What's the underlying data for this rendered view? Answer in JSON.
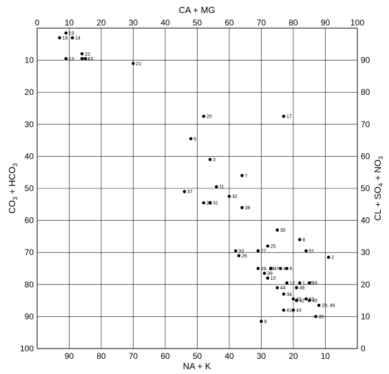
{
  "chart_data": {
    "type": "scatter",
    "title": "",
    "axes": {
      "top": {
        "label": "CA + MG",
        "ticks": [
          "0",
          "10",
          "20",
          "30",
          "40",
          "50",
          "60",
          "70",
          "80",
          "90",
          "100"
        ],
        "range": [
          0,
          100
        ]
      },
      "bottom": {
        "label": "NA + K",
        "ticks": [
          "90",
          "80",
          "70",
          "60",
          "50",
          "40",
          "30",
          "20",
          "10"
        ],
        "range": [
          100,
          0
        ]
      },
      "left": {
        "label": "CO3 + HCO3",
        "ticks": [
          "10",
          "20",
          "30",
          "40",
          "50",
          "60",
          "70",
          "80",
          "90",
          "100"
        ],
        "range": [
          0,
          100
        ]
      },
      "right": {
        "label": "CL + SO4 + NO3",
        "ticks": [
          "90",
          "80",
          "70",
          "60",
          "50",
          "40",
          "30",
          "20",
          "10",
          "0"
        ],
        "range": [
          100,
          0
        ]
      }
    },
    "x_tick_values": [
      0,
      10,
      20,
      30,
      40,
      50,
      60,
      70,
      80,
      90,
      100
    ],
    "y_tick_values": [
      0,
      10,
      20,
      30,
      40,
      50,
      60,
      70,
      80,
      90,
      100
    ],
    "grid": true,
    "points": [
      {
        "label": "19",
        "x": 9,
        "y": 1.5
      },
      {
        "label": "18",
        "x": 7,
        "y": 3
      },
      {
        "label": "14",
        "x": 11,
        "y": 3
      },
      {
        "label": "22",
        "x": 14,
        "y": 8
      },
      {
        "label": "13",
        "x": 9,
        "y": 9.5
      },
      {
        "label": "24",
        "x": 14,
        "y": 9.5
      },
      {
        "label": "15",
        "x": 15,
        "y": 9.5
      },
      {
        "label": "21",
        "x": 30,
        "y": 11
      },
      {
        "label": "20",
        "x": 52,
        "y": 27.5
      },
      {
        "label": "17",
        "x": 77,
        "y": 27.5
      },
      {
        "label": "5",
        "x": 48,
        "y": 34.5
      },
      {
        "label": "3",
        "x": 54,
        "y": 41
      },
      {
        "label": "7",
        "x": 64,
        "y": 46
      },
      {
        "label": "11",
        "x": 56,
        "y": 49.5
      },
      {
        "label": "37",
        "x": 46,
        "y": 51
      },
      {
        "label": "32",
        "x": 60,
        "y": 52.5
      },
      {
        "label": "23",
        "x": 52,
        "y": 54.5
      },
      {
        "label": "31",
        "x": 54,
        "y": 54.5
      },
      {
        "label": "36",
        "x": 64,
        "y": 56
      },
      {
        "label": "30",
        "x": 75,
        "y": 63
      },
      {
        "label": "8",
        "x": 82,
        "y": 66
      },
      {
        "label": "27",
        "x": 69,
        "y": 69.5
      },
      {
        "label": "25",
        "x": 72,
        "y": 68
      },
      {
        "label": "33",
        "x": 62,
        "y": 69.5
      },
      {
        "label": "51",
        "x": 84,
        "y": 69.5
      },
      {
        "label": "26",
        "x": 63,
        "y": 71
      },
      {
        "label": "2",
        "x": 91,
        "y": 71.5
      },
      {
        "label": "47",
        "x": 73,
        "y": 75
      },
      {
        "label": "4",
        "x": 76,
        "y": 75
      },
      {
        "label": "6",
        "x": 78,
        "y": 75
      },
      {
        "label": "28, 38",
        "x": 69,
        "y": 75
      },
      {
        "label": "39",
        "x": 71,
        "y": 76.5
      },
      {
        "label": "10",
        "x": 72,
        "y": 78
      },
      {
        "label": "12",
        "x": 78,
        "y": 79.5
      },
      {
        "label": "1, 45",
        "x": 82,
        "y": 79.5
      },
      {
        "label": "16",
        "x": 85,
        "y": 79.5
      },
      {
        "label": "44",
        "x": 75,
        "y": 81
      },
      {
        "label": "49",
        "x": 81,
        "y": 81
      },
      {
        "label": "34",
        "x": 77,
        "y": 83
      },
      {
        "label": "40",
        "x": 80,
        "y": 84.5
      },
      {
        "label": "50",
        "x": 84,
        "y": 84.5
      },
      {
        "label": "42",
        "x": 81,
        "y": 85
      },
      {
        "label": "48",
        "x": 85,
        "y": 85
      },
      {
        "label": "29, 46",
        "x": 88,
        "y": 86.5
      },
      {
        "label": "41",
        "x": 77,
        "y": 88
      },
      {
        "label": "43",
        "x": 80,
        "y": 88
      },
      {
        "label": "35",
        "x": 87,
        "y": 90
      },
      {
        "label": "9",
        "x": 70,
        "y": 91.5
      }
    ]
  }
}
